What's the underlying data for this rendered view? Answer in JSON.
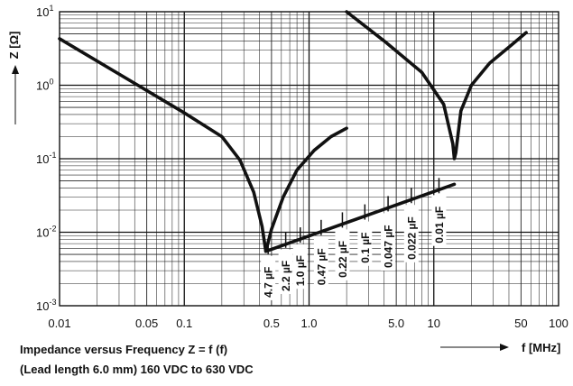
{
  "chart_data": {
    "type": "line",
    "xscale": "log",
    "yscale": "log",
    "xlim": [
      0.01,
      100
    ],
    "ylim": [
      0.001,
      10
    ],
    "grid": true,
    "ylabel": "Z [Ω]",
    "xlabel": "f [MHz]",
    "caption_line1": "Impedance versus Frequency Z = f (f)",
    "caption_line2": "(Lead length 6.0 mm) 160 VDC to 630 VDC",
    "x_ticks": [
      {
        "value": 0.01,
        "label": "0.01"
      },
      {
        "value": 0.05,
        "label": "0.05"
      },
      {
        "value": 0.1,
        "label": "0.1"
      },
      {
        "value": 0.5,
        "label": "0.5"
      },
      {
        "value": 1,
        "label": "1.0"
      },
      {
        "value": 5,
        "label": "5.0"
      },
      {
        "value": 10,
        "label": "10"
      },
      {
        "value": 50,
        "label": "50"
      },
      {
        "value": 100,
        "label": "100"
      }
    ],
    "y_ticks": [
      {
        "value": 10,
        "base": "10",
        "exp": "1"
      },
      {
        "value": 1,
        "base": "10",
        "exp": "0"
      },
      {
        "value": 0.1,
        "base": "10",
        "exp": "-1"
      },
      {
        "value": 0.01,
        "base": "10",
        "exp": "-2"
      },
      {
        "value": 0.001,
        "base": "10",
        "exp": "-3"
      }
    ],
    "series": [
      {
        "x": [
          0.01,
          0.1,
          0.2,
          0.28,
          0.36,
          0.42,
          0.45,
          0.5,
          0.62,
          0.8,
          1.1,
          1.5,
          2.0
        ],
        "y": [
          4.3,
          0.42,
          0.2,
          0.095,
          0.035,
          0.012,
          0.0055,
          0.011,
          0.03,
          0.07,
          0.13,
          0.2,
          0.26
        ]
      },
      {
        "x": [
          2.0,
          4.0,
          8.0,
          12.0,
          14.2,
          14.6,
          15.0,
          16.5,
          20.0,
          28.0,
          40.0,
          55.0
        ],
        "y": [
          10.0,
          4.0,
          1.5,
          0.55,
          0.16,
          0.1,
          0.12,
          0.45,
          1.0,
          2.0,
          3.3,
          5.2
        ]
      },
      {
        "x": [
          0.45,
          14.6
        ],
        "y": [
          0.0055,
          0.045
        ]
      }
    ],
    "capacitor_labels": [
      {
        "text": "4.7 µF",
        "x": 0.47
      },
      {
        "text": "2.2 µF",
        "x": 0.65
      },
      {
        "text": "1.0 µF",
        "x": 0.85
      },
      {
        "text": "0.47 µF",
        "x": 1.25
      },
      {
        "text": "0.22 µF",
        "x": 1.85
      },
      {
        "text": "0.1 µF",
        "x": 2.8
      },
      {
        "text": "0.047 µF",
        "x": 4.3
      },
      {
        "text": "0.022 µF",
        "x": 6.6
      },
      {
        "text": "0.01 µF",
        "x": 11.0
      }
    ]
  }
}
